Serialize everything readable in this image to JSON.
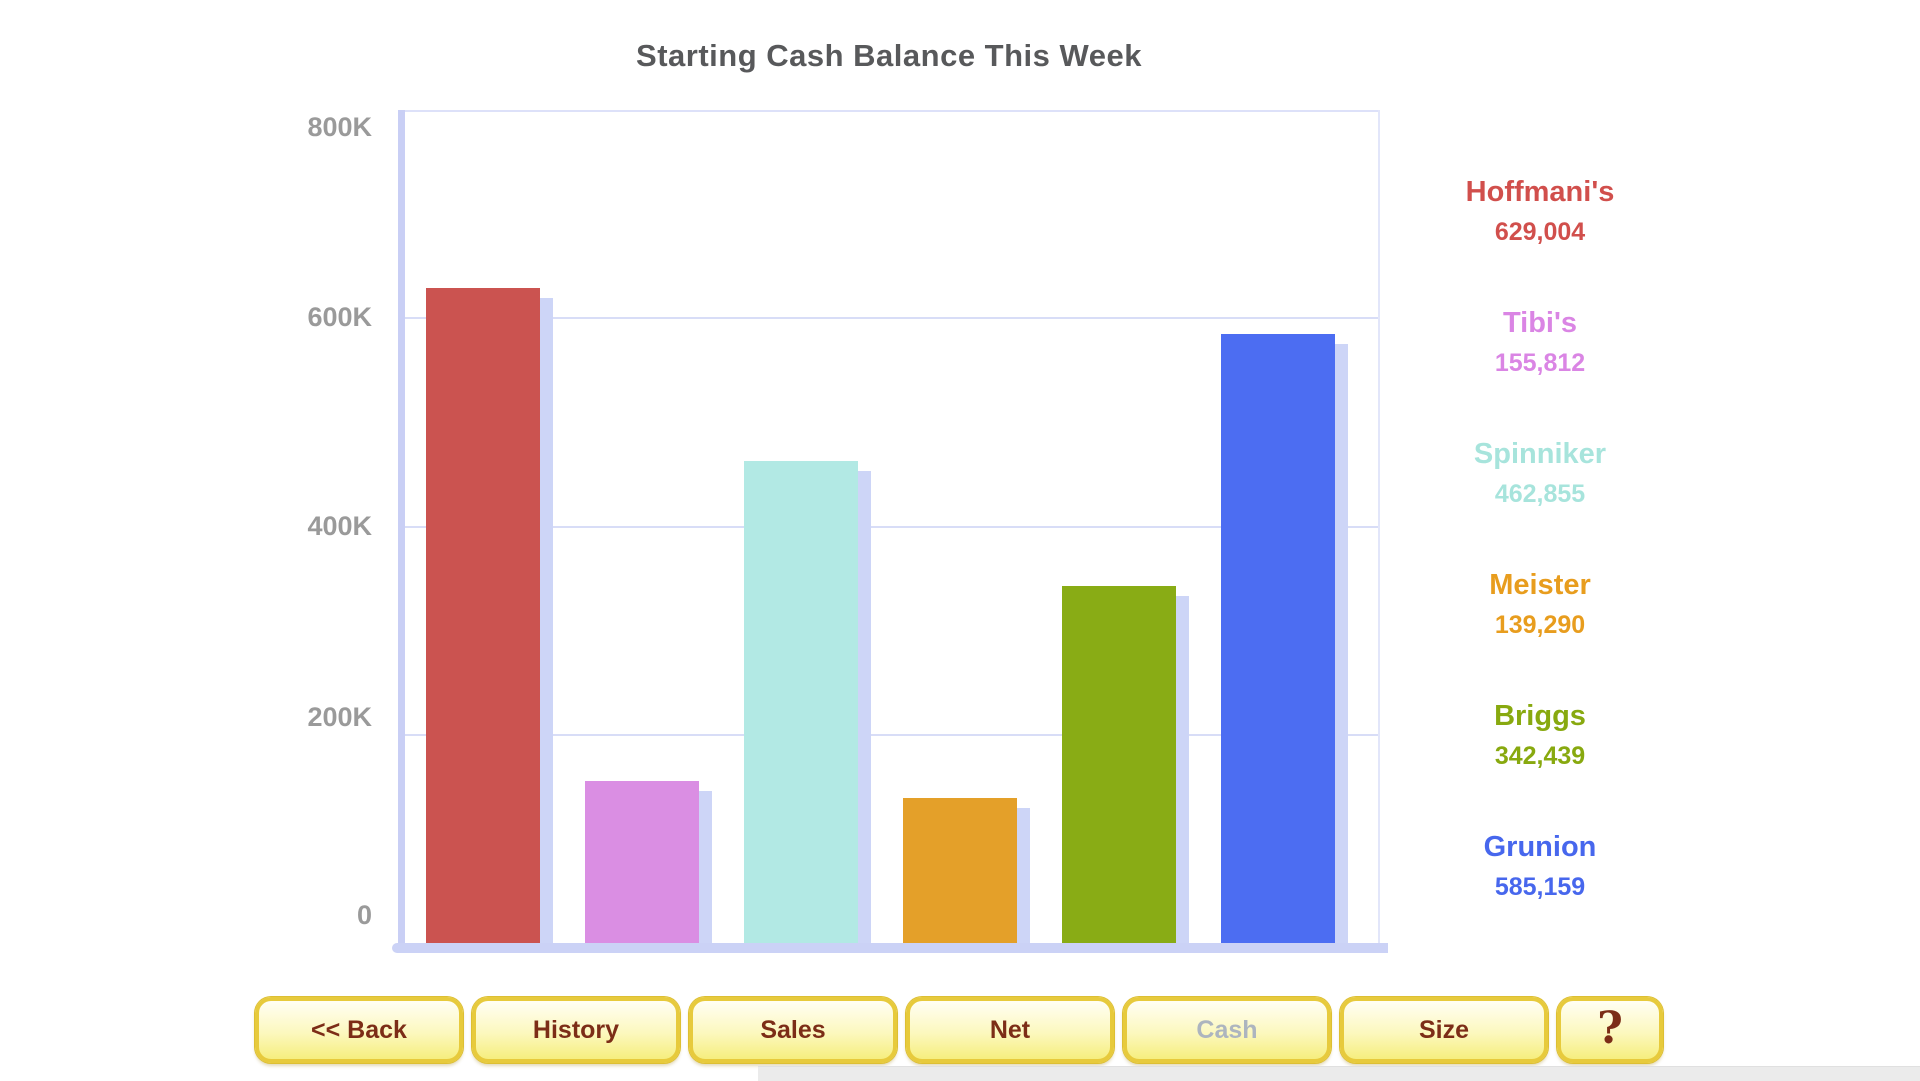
{
  "chart_data": {
    "type": "bar",
    "title": "Starting Cash Balance This Week",
    "xlabel": "",
    "ylabel": "",
    "categories": [
      "Hoffmani's",
      "Tibi's",
      "Spinniker",
      "Meister",
      "Briggs",
      "Grunion"
    ],
    "values": [
      629004,
      155812,
      462855,
      139290,
      342439,
      585159
    ],
    "bar_colors": [
      "#CB5350",
      "#DA8EE3",
      "#B2E9E4",
      "#E4A029",
      "#89AC15",
      "#4C6DF2"
    ],
    "shadow_color": "#CDD5F7",
    "axis_color": "#C9CFF5",
    "gridline_color": "#D8DDF7",
    "ylim": [
      0,
      800000
    ],
    "yticks": [
      {
        "label": "800K",
        "value": 800000
      },
      {
        "label": "600K",
        "value": 600000
      },
      {
        "label": "400K",
        "value": 400000
      },
      {
        "label": "200K",
        "value": 200000
      },
      {
        "label": "0",
        "value": 0
      }
    ],
    "grid": true,
    "legend_position": "right"
  },
  "legend": {
    "entries": [
      {
        "id": "hoffmanis",
        "name": "Hoffmani's",
        "value": "629,004",
        "color": "#D14F4C"
      },
      {
        "id": "tibis",
        "name": "Tibi's",
        "value": "155,812",
        "color": "#DA85E4"
      },
      {
        "id": "spinniker",
        "name": "Spinniker",
        "value": "462,855",
        "color": "#A7E4DC"
      },
      {
        "id": "meister",
        "name": "Meister",
        "value": "139,290",
        "color": "#E89D1E"
      },
      {
        "id": "briggs",
        "name": "Briggs",
        "value": "342,439",
        "color": "#88A90F"
      },
      {
        "id": "grunion",
        "name": "Grunion",
        "value": "585,159",
        "color": "#4767ED"
      }
    ]
  },
  "toolbar": {
    "buttons": [
      {
        "id": "back",
        "label": "<< Back",
        "state": "enabled"
      },
      {
        "id": "history",
        "label": "History",
        "state": "enabled"
      },
      {
        "id": "sales",
        "label": "Sales",
        "state": "enabled"
      },
      {
        "id": "net",
        "label": "Net",
        "state": "enabled"
      },
      {
        "id": "cash",
        "label": "Cash",
        "state": "disabled"
      },
      {
        "id": "size",
        "label": "Size",
        "state": "enabled"
      },
      {
        "id": "help",
        "label": "?",
        "state": "enabled"
      }
    ]
  }
}
